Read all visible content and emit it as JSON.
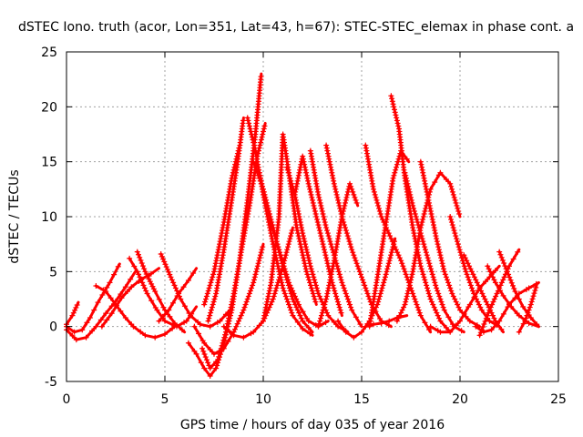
{
  "chart_data": {
    "type": "line",
    "title": "dSTEC Iono. truth (acor, Lon=351, Lat=43, h=67): STEC-STEC_elemax in phase cont. a",
    "xlabel": "GPS time / hours of day 035 of year 2016",
    "ylabel": "dSTEC  / TECUs",
    "xlim": [
      0,
      25
    ],
    "ylim": [
      -5,
      25
    ],
    "xticks": [
      "0",
      "5",
      "10",
      "15",
      "20",
      "25"
    ],
    "yticks": [
      "-5",
      "0",
      "5",
      "10",
      "15",
      "20",
      "25"
    ],
    "grid": true,
    "series_color": "#ff0000",
    "series": [
      {
        "x": [
          0.0,
          0.5,
          1.0,
          1.5,
          2.0,
          2.5,
          3.0,
          3.5
        ],
        "y": [
          -0.3,
          -1.2,
          -1.0,
          0.0,
          1.2,
          2.3,
          3.6,
          5.0
        ]
      },
      {
        "x": [
          0.0,
          0.4,
          0.8,
          1.2,
          1.6,
          2.2,
          2.7
        ],
        "y": [
          0.0,
          -0.5,
          -0.3,
          0.8,
          2.2,
          4.0,
          5.7
        ]
      },
      {
        "x": [
          0.0,
          0.3,
          0.6
        ],
        "y": [
          0.2,
          1.0,
          2.2
        ]
      },
      {
        "x": [
          1.5,
          2.0,
          2.5,
          3.0,
          3.4,
          4.0,
          4.5,
          5.0,
          5.5
        ],
        "y": [
          3.7,
          3.2,
          2.0,
          0.8,
          0.0,
          -0.8,
          -1.0,
          -0.7,
          0.0
        ]
      },
      {
        "x": [
          3.2,
          3.6,
          4.1,
          4.6,
          5.0,
          5.6,
          6.1,
          6.6
        ],
        "y": [
          6.2,
          5.0,
          3.0,
          1.5,
          0.5,
          0.0,
          0.5,
          1.8
        ]
      },
      {
        "x": [
          3.6,
          4.0,
          4.5,
          5.0,
          5.5,
          6.0
        ],
        "y": [
          6.8,
          5.0,
          3.2,
          1.5,
          0.3,
          -0.5
        ]
      },
      {
        "x": [
          4.8,
          5.3,
          5.8,
          6.3,
          6.8,
          7.3,
          7.8,
          8.3
        ],
        "y": [
          6.6,
          4.5,
          2.5,
          1.0,
          0.2,
          0.0,
          0.5,
          1.5
        ]
      },
      {
        "x": [
          4.7,
          5.2,
          5.7,
          6.2,
          6.6
        ],
        "y": [
          0.5,
          1.5,
          3.0,
          4.2,
          5.3
        ]
      },
      {
        "x": [
          1.8,
          2.3,
          2.8,
          3.3,
          3.8,
          4.3,
          4.7
        ],
        "y": [
          0.0,
          1.2,
          2.6,
          3.6,
          4.3,
          4.8,
          5.3
        ]
      },
      {
        "x": [
          6.2,
          6.6,
          7.0,
          7.3,
          7.6,
          8.0,
          8.4,
          8.8,
          9.2,
          9.6,
          9.9
        ],
        "y": [
          -1.5,
          -2.5,
          -3.8,
          -4.5,
          -3.8,
          -1.5,
          1.5,
          6.0,
          11.5,
          17.5,
          23.0
        ]
      },
      {
        "x": [
          6.9,
          7.3,
          7.7,
          8.1,
          8.5,
          8.9,
          9.3,
          9.7,
          10.1
        ],
        "y": [
          -2.0,
          -3.8,
          -3.0,
          -0.5,
          3.0,
          7.0,
          11.0,
          15.5,
          18.5
        ]
      },
      {
        "x": [
          7.2,
          7.6,
          8.0,
          8.4,
          8.7,
          9.0
        ],
        "y": [
          0.5,
          3.0,
          7.0,
          11.5,
          15.0,
          19.0
        ]
      },
      {
        "x": [
          7.0,
          7.5,
          8.0,
          8.4,
          8.8
        ],
        "y": [
          2.0,
          5.0,
          9.5,
          13.5,
          16.5
        ]
      },
      {
        "x": [
          6.5,
          7.0,
          7.5,
          8.0,
          8.5,
          9.0,
          9.5,
          10.0
        ],
        "y": [
          0.0,
          -1.5,
          -2.5,
          -2.0,
          -0.5,
          1.5,
          4.0,
          7.5
        ]
      },
      {
        "x": [
          9.2,
          9.6,
          10.0,
          10.5,
          11.0,
          11.5,
          12.0,
          12.5
        ],
        "y": [
          19.0,
          16.0,
          12.0,
          7.5,
          3.5,
          1.0,
          -0.2,
          -0.8
        ]
      },
      {
        "x": [
          9.5,
          10.0,
          10.5,
          11.0,
          11.5,
          12.0,
          12.5
        ],
        "y": [
          15.0,
          12.5,
          9.0,
          5.5,
          2.5,
          0.5,
          -0.5
        ]
      },
      {
        "x": [
          9.8,
          10.3,
          10.8,
          11.3,
          11.8,
          12.3,
          12.8,
          13.3
        ],
        "y": [
          14.0,
          10.0,
          7.0,
          4.0,
          2.0,
          0.5,
          0.0,
          0.5
        ]
      },
      {
        "x": [
          8.0,
          8.5,
          9.0,
          9.5,
          10.0,
          10.5,
          11.0,
          11.5
        ],
        "y": [
          0.0,
          -0.8,
          -1.0,
          -0.5,
          0.5,
          2.5,
          5.5,
          9.0
        ]
      },
      {
        "x": [
          10.0,
          10.4,
          10.8,
          11.0,
          11.3,
          11.7,
          12.2,
          12.7
        ],
        "y": [
          0.5,
          4.0,
          10.0,
          17.5,
          14.0,
          9.0,
          5.0,
          2.0
        ]
      },
      {
        "x": [
          11.2,
          11.6,
          12.0,
          12.4,
          12.8,
          13.3,
          13.8,
          14.3
        ],
        "y": [
          14.5,
          12.0,
          8.5,
          5.5,
          3.0,
          1.0,
          0.0,
          -0.5
        ]
      },
      {
        "x": [
          11.6,
          12.0,
          12.3,
          12.7,
          13.1,
          13.5,
          14.0
        ],
        "y": [
          12.0,
          15.5,
          13.0,
          10.0,
          7.0,
          4.0,
          1.0
        ]
      },
      {
        "x": [
          12.4,
          12.8,
          13.2,
          13.6,
          14.0,
          14.5,
          15.0
        ],
        "y": [
          16.0,
          12.0,
          9.0,
          6.5,
          4.0,
          1.5,
          0.0
        ]
      },
      {
        "x": [
          13.2,
          13.6,
          14.0,
          14.5,
          15.0,
          15.5,
          16.0,
          16.5
        ],
        "y": [
          16.5,
          13.0,
          10.0,
          7.0,
          4.5,
          2.0,
          0.5,
          0.0
        ]
      },
      {
        "x": [
          12.8,
          13.2,
          13.6,
          14.0,
          14.4,
          14.8
        ],
        "y": [
          0.0,
          2.5,
          6.0,
          10.0,
          13.0,
          11.0
        ]
      },
      {
        "x": [
          13.8,
          14.2,
          14.6,
          15.0,
          15.4,
          15.8,
          16.2,
          16.7
        ],
        "y": [
          0.5,
          -0.5,
          -1.0,
          -0.5,
          0.5,
          2.0,
          4.5,
          8.0
        ]
      },
      {
        "x": [
          15.2,
          15.6,
          16.0,
          16.5,
          17.0,
          17.5,
          18.0,
          18.5
        ],
        "y": [
          16.5,
          12.5,
          10.0,
          8.0,
          6.0,
          3.5,
          1.0,
          -0.5
        ]
      },
      {
        "x": [
          15.4,
          15.8,
          16.2,
          16.6,
          17.0,
          17.4
        ],
        "y": [
          0.0,
          4.5,
          9.0,
          13.5,
          16.0,
          15.0
        ]
      },
      {
        "x": [
          16.5,
          16.9,
          17.2,
          17.6,
          18.0,
          18.5,
          19.0,
          19.5
        ],
        "y": [
          21.0,
          18.0,
          13.5,
          9.0,
          5.5,
          2.5,
          0.5,
          -0.5
        ]
      },
      {
        "x": [
          15.2,
          15.6,
          16.0,
          16.4,
          16.8,
          17.3
        ],
        "y": [
          0.0,
          0.2,
          0.3,
          0.5,
          0.8,
          1.0
        ]
      },
      {
        "x": [
          16.8,
          17.2,
          17.6,
          18.0,
          18.5,
          19.0,
          19.5,
          20.0
        ],
        "y": [
          0.5,
          2.0,
          5.0,
          9.0,
          12.5,
          14.0,
          13.0,
          10.0
        ]
      },
      {
        "x": [
          17.2,
          17.6,
          18.0,
          18.4,
          18.8,
          19.2,
          19.7,
          20.2
        ],
        "y": [
          14.0,
          11.0,
          8.5,
          6.0,
          3.5,
          1.5,
          0.0,
          -0.5
        ]
      },
      {
        "x": [
          18.0,
          18.4,
          18.8,
          19.2,
          19.6,
          20.0,
          20.5,
          21.0
        ],
        "y": [
          15.0,
          11.5,
          8.0,
          5.0,
          3.0,
          1.5,
          0.5,
          0.0
        ]
      },
      {
        "x": [
          19.5,
          19.9,
          20.3,
          20.7,
          21.1,
          21.5,
          22.0
        ],
        "y": [
          10.0,
          7.5,
          5.0,
          3.0,
          1.5,
          0.5,
          0.0
        ]
      },
      {
        "x": [
          18.5,
          19.0,
          19.5,
          20.0,
          20.5,
          21.0,
          21.5,
          22.0
        ],
        "y": [
          0.0,
          -0.5,
          -0.5,
          0.5,
          2.0,
          3.5,
          4.5,
          5.5
        ]
      },
      {
        "x": [
          20.2,
          20.6,
          21.0,
          21.4,
          21.8,
          22.2
        ],
        "y": [
          6.5,
          5.0,
          3.5,
          2.0,
          0.5,
          -0.5
        ]
      },
      {
        "x": [
          20.8,
          21.2,
          21.6,
          22.0,
          22.5,
          23.0,
          23.5,
          24.0
        ],
        "y": [
          0.0,
          -0.5,
          -0.3,
          0.5,
          2.0,
          3.0,
          3.5,
          4.0
        ]
      },
      {
        "x": [
          21.4,
          21.8,
          22.2,
          22.6,
          23.0,
          23.5,
          24.0
        ],
        "y": [
          5.5,
          4.0,
          2.8,
          1.8,
          1.0,
          0.3,
          0.0
        ]
      },
      {
        "x": [
          22.0,
          22.4,
          22.8,
          23.2,
          23.6,
          24.0
        ],
        "y": [
          6.8,
          5.0,
          3.2,
          1.8,
          0.8,
          0.0
        ]
      },
      {
        "x": [
          21.0,
          21.5,
          22.0,
          22.5,
          23.0
        ],
        "y": [
          -0.8,
          1.5,
          3.5,
          5.5,
          7.0
        ]
      },
      {
        "x": [
          23.0,
          23.3,
          23.6,
          23.9
        ],
        "y": [
          -0.5,
          0.5,
          2.0,
          3.8
        ]
      }
    ]
  }
}
